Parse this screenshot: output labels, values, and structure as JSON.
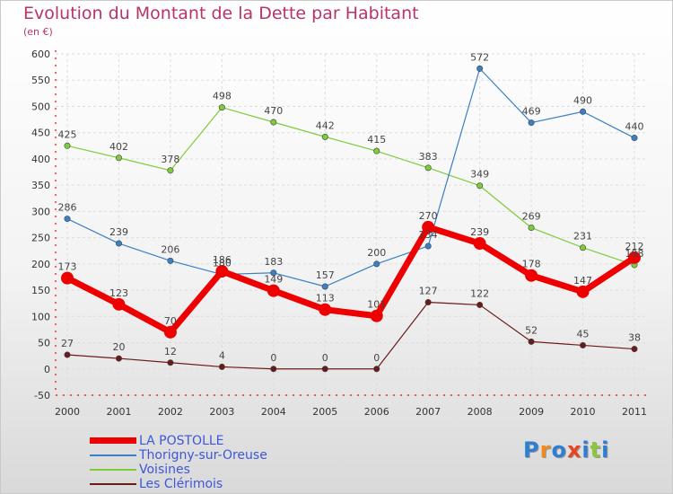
{
  "title": "Evolution du Montant de la Dette par Habitant",
  "subtitle": "(en €)",
  "logo": "Proxiti",
  "chart_data": {
    "type": "line",
    "title": "Evolution du Montant de la Dette par Habitant",
    "ylabel": "(en €)",
    "xlabel": "",
    "x": [
      "2000",
      "2001",
      "2002",
      "2003",
      "2004",
      "2005",
      "2006",
      "2007",
      "2008",
      "2009",
      "2010",
      "2011"
    ],
    "ylim": [
      -50,
      600
    ],
    "yticks": [
      -50,
      0,
      50,
      100,
      150,
      200,
      250,
      300,
      350,
      400,
      450,
      500,
      550,
      600
    ],
    "grid": true,
    "legend_position": "bottom-left",
    "series": [
      {
        "name": "LA POSTOLLE",
        "color": "#ee0000",
        "values": [
          173,
          123,
          70,
          186,
          149,
          113,
          101,
          270,
          239,
          178,
          147,
          212
        ]
      },
      {
        "name": "Thorigny-sur-Oreuse",
        "color": "#3b7fc4",
        "values": [
          286,
          239,
          206,
          180,
          183,
          157,
          200,
          234,
          572,
          469,
          490,
          440
        ]
      },
      {
        "name": "Voisines",
        "color": "#7fcc3a",
        "values": [
          425,
          402,
          378,
          498,
          470,
          442,
          415,
          383,
          349,
          269,
          231,
          198
        ]
      },
      {
        "name": "Les Clérimois",
        "color": "#6b1a1a",
        "values": [
          27,
          20,
          12,
          4,
          0,
          0,
          0,
          127,
          122,
          52,
          45,
          38
        ]
      }
    ],
    "labels": [
      [
        "173",
        "123",
        "70",
        "186",
        "149",
        "113",
        "101",
        "270",
        "239",
        "178",
        "147",
        "212"
      ],
      [
        "286",
        "239",
        "206",
        "180",
        "183",
        "157",
        "200",
        "234",
        "572",
        "469",
        "490",
        "440"
      ],
      [
        "425",
        "402",
        "378",
        "498",
        "470",
        "442",
        "415",
        "383",
        "349",
        "269",
        "231",
        "198"
      ],
      [
        "27",
        "20",
        "12",
        "4",
        "0",
        "0",
        "0",
        "127",
        "122",
        "52",
        "45",
        "38"
      ]
    ]
  }
}
